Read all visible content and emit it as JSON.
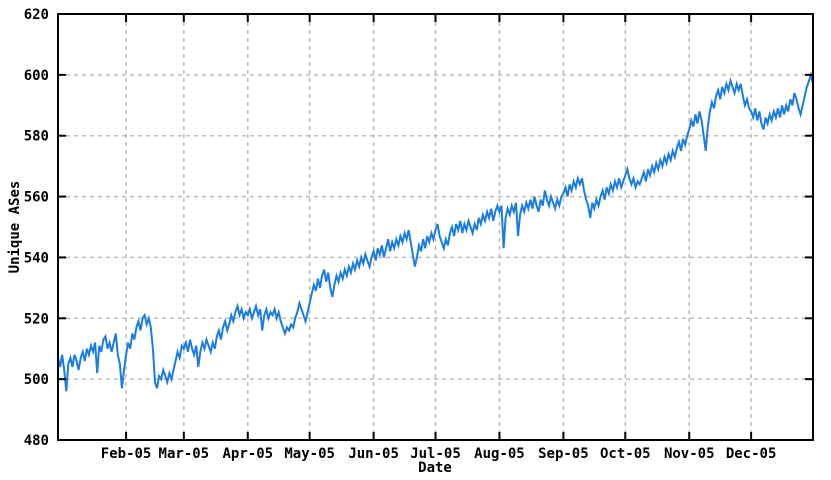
{
  "chart_data": {
    "type": "line",
    "title": "",
    "xlabel": "Date",
    "ylabel": "Unique ASes",
    "grid": true,
    "legend": "none",
    "ylim": [
      480,
      620
    ],
    "y_ticks": [
      480,
      500,
      520,
      540,
      560,
      580,
      600,
      620
    ],
    "x_tick_labels": [
      "Feb-05",
      "Mar-05",
      "Apr-05",
      "May-05",
      "Jun-05",
      "Jul-05",
      "Aug-05",
      "Sep-05",
      "Oct-05",
      "Nov-05",
      "Dec-05"
    ],
    "x_tick_days": [
      31,
      59,
      90,
      120,
      151,
      181,
      212,
      243,
      273,
      304,
      334
    ],
    "xlim_days": [
      -2,
      364
    ],
    "series": [
      {
        "name": "Unique ASes",
        "color": "#1b7ce2",
        "start_day": -2,
        "step_days": 1,
        "values": [
          507,
          504,
          508,
          503,
          496,
          505,
          507,
          504,
          508,
          506,
          503,
          507,
          509,
          506,
          510,
          508,
          511,
          509,
          512,
          502,
          511,
          509,
          513,
          514,
          510,
          512,
          509,
          512,
          515,
          508,
          505,
          497,
          503,
          508,
          512,
          510,
          515,
          513,
          517,
          519,
          516,
          520,
          521,
          518,
          520,
          517,
          510,
          499,
          497,
          501,
          500,
          503,
          501,
          499,
          502,
          500,
          503,
          506,
          509,
          507,
          511,
          510,
          512,
          509,
          513,
          510,
          508,
          511,
          504,
          509,
          512,
          510,
          513,
          511,
          509,
          512,
          510,
          514,
          516,
          513,
          517,
          519,
          516,
          518,
          521,
          519,
          522,
          524,
          521,
          523,
          520,
          522,
          521,
          523,
          520,
          522,
          524,
          521,
          523,
          516,
          521,
          523,
          520,
          522,
          521,
          523,
          520,
          522,
          519,
          517,
          515,
          517,
          516,
          518,
          517,
          520,
          522,
          525,
          523,
          521,
          519,
          522,
          525,
          528,
          531,
          529,
          533,
          530,
          534,
          536,
          532,
          535,
          530,
          527,
          531,
          534,
          532,
          535,
          533,
          536,
          534,
          537,
          535,
          538,
          536,
          539,
          537,
          540,
          538,
          541,
          539,
          537,
          540,
          542,
          539,
          543,
          541,
          544,
          540,
          543,
          546,
          542,
          545,
          543,
          546,
          544,
          547,
          545,
          548,
          546,
          549,
          545,
          541,
          537,
          540,
          544,
          542,
          546,
          543,
          547,
          545,
          548,
          546,
          549,
          551,
          547,
          545,
          543,
          546,
          544,
          548,
          550,
          547,
          551,
          549,
          552,
          548,
          551,
          549,
          552,
          550,
          548,
          551,
          549,
          553,
          551,
          554,
          552,
          555,
          553,
          556,
          552,
          555,
          557,
          555,
          557,
          543,
          553,
          556,
          554,
          557,
          555,
          558,
          547,
          554,
          557,
          555,
          558,
          556,
          559,
          556,
          560,
          557,
          555,
          559,
          557,
          562,
          559,
          557,
          560,
          558,
          556,
          559,
          557,
          560,
          561,
          563,
          560,
          564,
          562,
          565,
          563,
          566,
          564,
          566,
          562,
          559,
          557,
          553,
          558,
          556,
          559,
          557,
          560,
          562,
          559,
          563,
          561,
          564,
          562,
          565,
          563,
          566,
          563,
          565,
          567,
          569,
          566,
          564,
          566,
          563,
          565,
          564,
          566,
          568,
          565,
          569,
          567,
          570,
          568,
          571,
          569,
          572,
          570,
          573,
          571,
          574,
          572,
          575,
          573,
          576,
          578,
          575,
          579,
          577,
          580,
          582,
          585,
          583,
          587,
          584,
          588,
          585,
          580,
          575,
          583,
          588,
          591,
          589,
          593,
          595,
          592,
          596,
          594,
          597,
          595,
          598,
          596,
          594,
          597,
          595,
          597,
          593,
          590,
          592,
          589,
          588,
          586,
          589,
          585,
          588,
          584,
          582,
          586,
          584,
          587,
          585,
          588,
          586,
          589,
          586,
          590,
          587,
          590,
          588,
          592,
          590,
          594,
          592,
          589,
          587,
          590,
          593,
          596,
          598,
          600,
          597
        ]
      }
    ],
    "colors": {
      "line": "#1b7ce2",
      "grid": "#bdbdbd",
      "axis": "#000000",
      "background": "#ffffff",
      "text": "#000000"
    }
  }
}
